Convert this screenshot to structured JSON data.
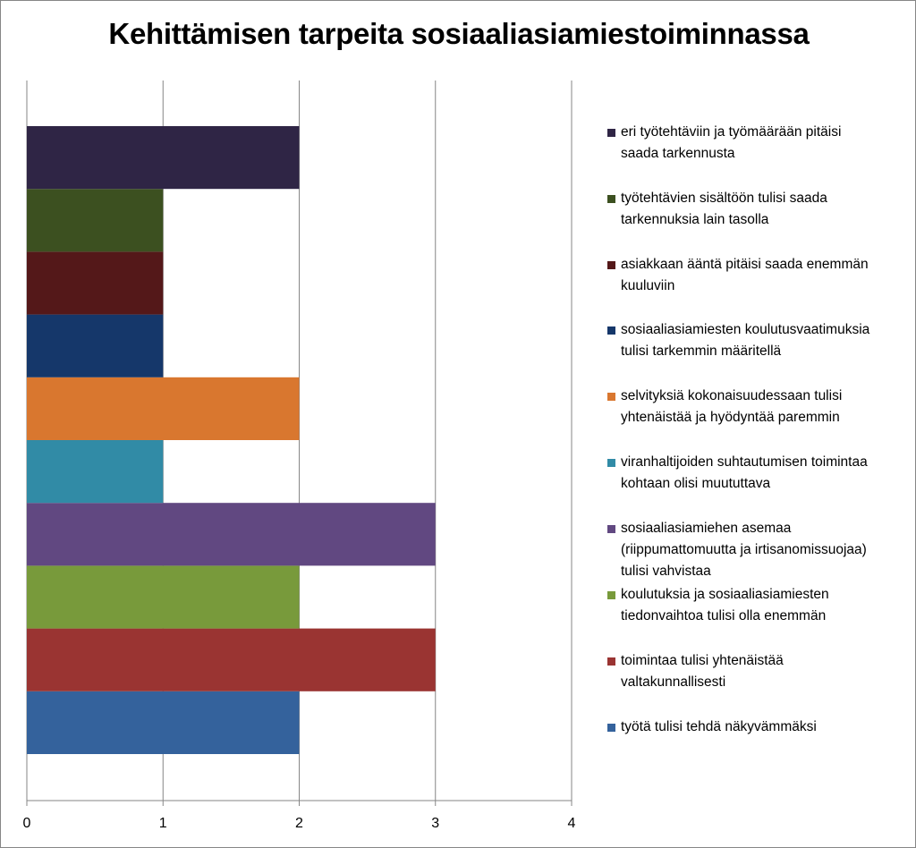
{
  "chart_data": {
    "type": "bar",
    "orientation": "horizontal",
    "title": "Kehittämisen tarpeita sosiaaliasiamiestoiminnassa",
    "xlim": [
      0,
      4
    ],
    "x_ticks": [
      "0",
      "1",
      "2",
      "3",
      "4"
    ],
    "grid": true,
    "legend_position": "right",
    "categories": [
      "työtä tulisi tehdä näkyvämmäksi",
      "toimintaa tulisi yhtenäistää valtakunnallisesti",
      "koulutuksia ja sosiaaliasiamiesten tiedonvaihtoa tulisi olla enemmän",
      "sosiaaliasiamiehen asemaa (riippumattomuutta ja irtisanomissuojaa) tulisi vahvistaa",
      "viranhaltijoiden suhtautumisen toimintaa kohtaan olisi muututtava",
      "selvityksiä kokonaisuudessaan tulisi yhtenäistää ja hyödyntää paremmin",
      "sosiaaliasiamiesten koulutusvaatimuksia tulisi tarkemmin määritellä",
      "asiakkaan ääntä pitäisi saada enemmän kuuluviin",
      "työtehtävien sisältöön tulisi saada tarkennuksia lain tasolla",
      "eri työtehtäviin ja työmäärään pitäisi saada tarkennusta"
    ],
    "values": [
      2,
      3,
      2,
      3,
      1,
      2,
      1,
      1,
      1,
      2
    ],
    "colors": [
      "#34629C",
      "#9A3432",
      "#789A3B",
      "#614881",
      "#318BA6",
      "#D9772F",
      "#15376A",
      "#541819",
      "#3C5020",
      "#2F2545"
    ]
  },
  "legend": [
    {
      "lines": [
        "eri työtehtäviin ja työmäärään pitäisi",
        "saada tarkennusta"
      ],
      "color": "#2F2545"
    },
    {
      "lines": [
        "työtehtävien sisältöön tulisi saada",
        "tarkennuksia lain tasolla"
      ],
      "color": "#3C5020"
    },
    {
      "lines": [
        "asiakkaan ääntä pitäisi saada enemmän",
        "kuuluviin"
      ],
      "color": "#541819"
    },
    {
      "lines": [
        "sosiaaliasiamiesten koulutusvaatimuksia",
        "tulisi tarkemmin määritellä"
      ],
      "color": "#15376A"
    },
    {
      "lines": [
        "selvityksiä kokonaisuudessaan tulisi",
        "yhtenäistää ja hyödyntää paremmin"
      ],
      "color": "#D9772F"
    },
    {
      "lines": [
        "viranhaltijoiden suhtautumisen toimintaa",
        "kohtaan olisi muututtava"
      ],
      "color": "#318BA6"
    },
    {
      "lines": [
        "sosiaaliasiamiehen asemaa",
        "(riippumattomuutta ja irtisanomissuojaa)",
        "tulisi vahvistaa"
      ],
      "color": "#614881"
    },
    {
      "lines": [
        "koulutuksia ja sosiaaliasiamiesten",
        "tiedonvaihtoa tulisi olla enemmän"
      ],
      "color": "#789A3B"
    },
    {
      "lines": [
        "toimintaa tulisi yhtenäistää",
        "valtakunnallisesti"
      ],
      "color": "#9A3432"
    },
    {
      "lines": [
        "työtä tulisi tehdä näkyvämmäksi"
      ],
      "color": "#34629C"
    }
  ]
}
